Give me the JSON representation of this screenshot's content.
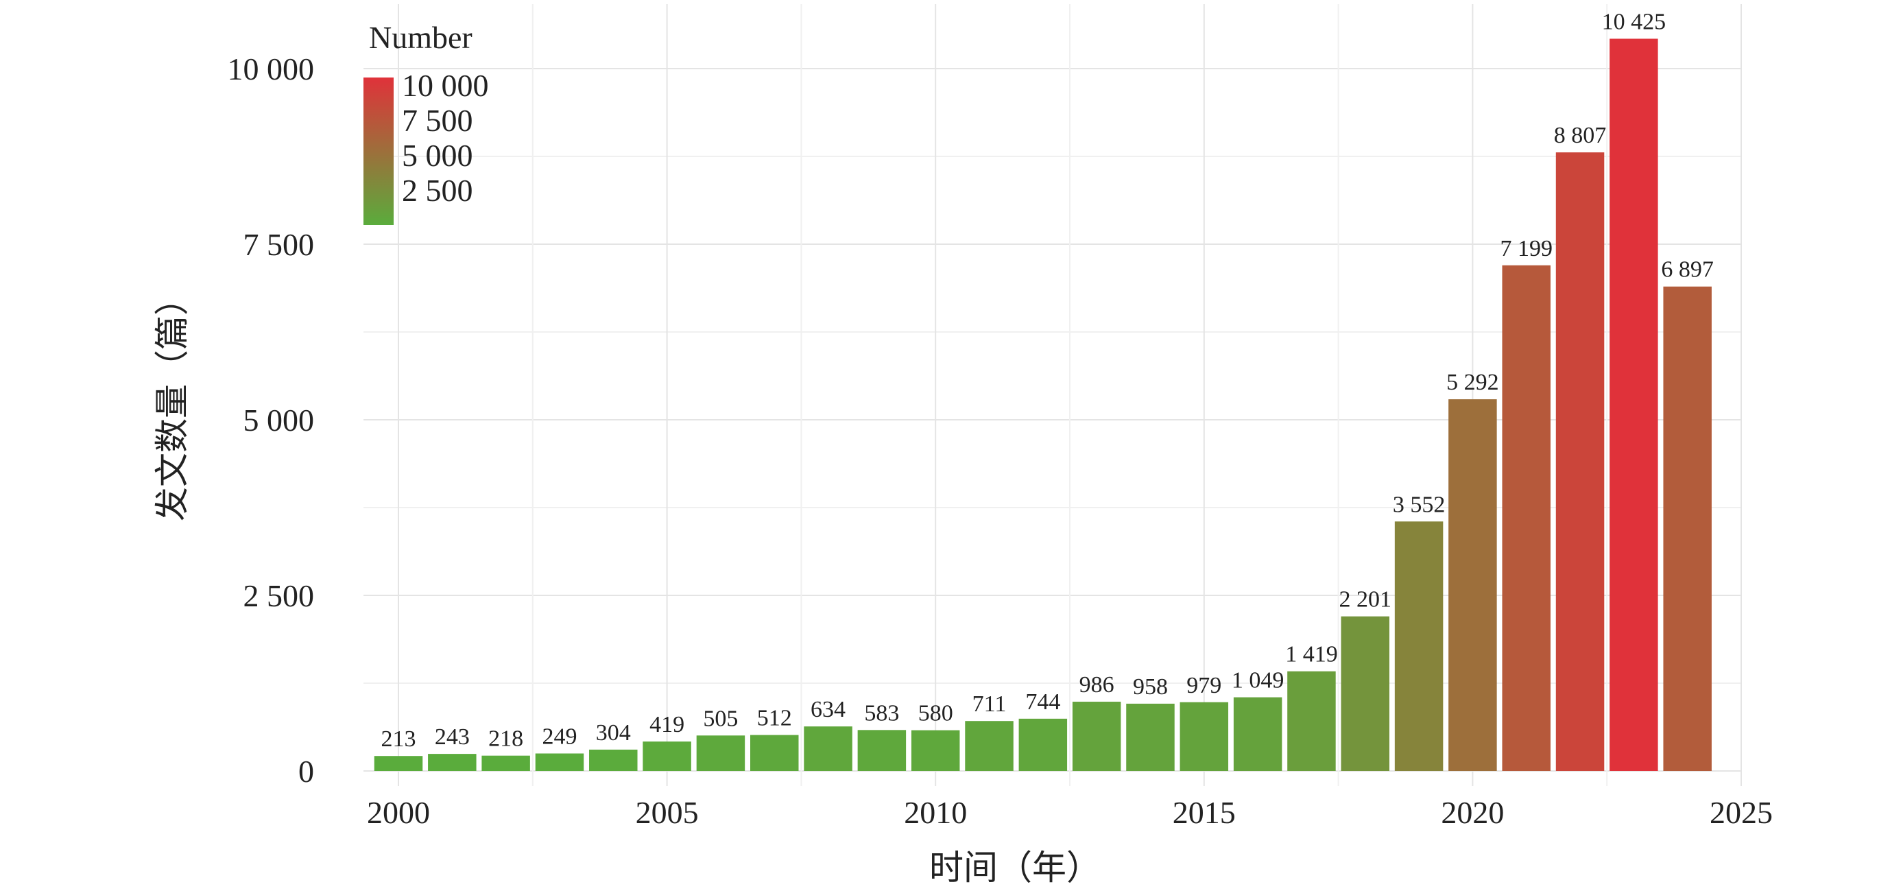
{
  "chart_data": {
    "type": "bar",
    "x": [
      2000,
      2001,
      2002,
      2003,
      2004,
      2005,
      2006,
      2007,
      2008,
      2009,
      2010,
      2011,
      2012,
      2013,
      2014,
      2015,
      2016,
      2017,
      2018,
      2019,
      2020,
      2021,
      2022,
      2023,
      2024
    ],
    "values": [
      213,
      243,
      218,
      249,
      304,
      419,
      505,
      512,
      634,
      583,
      580,
      711,
      744,
      986,
      958,
      979,
      1049,
      1419,
      2201,
      3552,
      5292,
      7199,
      8807,
      10425,
      6897
    ],
    "data_labels": [
      "213",
      "243",
      "218",
      "249",
      "304",
      "419",
      "505",
      "512",
      "634",
      "583",
      "580",
      "711",
      "744",
      "986",
      "958",
      "979",
      "1 049",
      "1 419",
      "2 201",
      "3 552",
      "5 292",
      "7 199",
      "8 807",
      "10 425",
      "6 897"
    ],
    "xlabel": "时间（年）",
    "ylabel": "发文数量（篇）",
    "xlim": [
      1999,
      2025
    ],
    "ylim": [
      0,
      10900
    ],
    "x_ticks": [
      2000,
      2005,
      2010,
      2015,
      2020,
      2025
    ],
    "x_tick_labels": [
      "2000",
      "2005",
      "2010",
      "2015",
      "2020",
      "2025"
    ],
    "y_ticks": [
      0,
      2500,
      5000,
      7500,
      10000
    ],
    "y_tick_labels": [
      "0",
      "2 500",
      "5 000",
      "7 500",
      "10 000"
    ],
    "grid": true,
    "legend": {
      "title": "Number",
      "placement": "top-left",
      "labels": [
        "10 000",
        "7 500",
        "5 000",
        "2 500"
      ],
      "values": [
        10000,
        7500,
        5000,
        2500
      ]
    },
    "color_scale": {
      "low": "#5aac3c",
      "high": "#e0323a",
      "min": 213,
      "max": 10425
    }
  }
}
